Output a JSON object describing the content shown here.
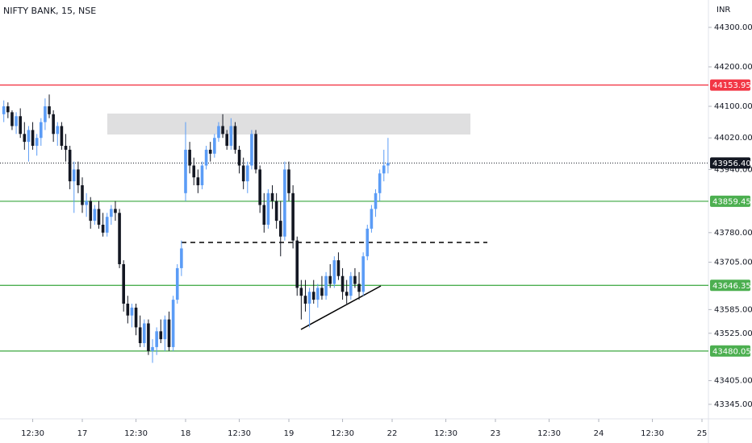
{
  "chart_data": {
    "type": "candlestick",
    "title": "NIFTY BANK, 15, NSE",
    "currency": "INR",
    "x": [
      -19,
      -18,
      -17,
      -16,
      -15,
      -14,
      -13,
      -12,
      -11,
      -10,
      -9,
      -8,
      -7,
      -6,
      -5,
      -4,
      -3,
      -2,
      -1,
      0,
      1,
      2,
      3,
      4,
      5,
      6,
      7,
      8,
      9,
      10,
      11,
      12,
      13,
      14,
      15,
      16,
      17,
      18,
      19,
      20,
      21,
      22,
      23,
      24,
      25,
      26,
      27,
      28,
      29,
      30,
      31,
      32,
      33,
      34,
      35,
      36,
      37,
      38,
      39,
      40,
      41,
      42,
      43,
      44,
      45,
      46,
      47,
      48,
      49,
      50,
      51,
      52,
      53,
      54,
      55,
      56,
      57,
      58,
      59,
      60,
      61,
      62,
      63,
      64,
      65,
      66,
      67,
      68,
      69,
      70,
      71,
      72,
      73,
      74
    ],
    "series": [
      {
        "up_color": "#5b9cf6",
        "down_color": "#131722",
        "open": [
          44080,
          44100,
          44085,
          44050,
          44075,
          44030,
          44010,
          44040,
          44000,
          44020,
          44060,
          44100,
          44080,
          44030,
          44050,
          44000,
          43990,
          43910,
          43940,
          43900,
          43850,
          43860,
          43810,
          43840,
          43800,
          43780,
          43820,
          43840,
          43830,
          43700,
          43600,
          43570,
          43590,
          43540,
          43500,
          43550,
          43480,
          43490,
          43530,
          43510,
          43560,
          43490,
          43610,
          43690,
          43880,
          43990,
          43950,
          43920,
          43900,
          43950,
          43990,
          43980,
          44020,
          44050,
          44030,
          44000,
          44050,
          43990,
          43950,
          43910,
          43950,
          44030,
          43940,
          43850,
          43800,
          43880,
          43860,
          43810,
          43770,
          43940,
          43880,
          43760,
          43640,
          43620,
          43600,
          43630,
          43610,
          43640,
          43620,
          43670,
          43650,
          43710,
          43670,
          43630,
          43620,
          43670,
          43650,
          43630,
          43720,
          43790,
          43840,
          43880,
          43930,
          43950
        ],
        "high": [
          44115,
          44110,
          44090,
          44085,
          44095,
          44060,
          44050,
          44060,
          44030,
          44070,
          44120,
          44130,
          44090,
          44060,
          44060,
          44030,
          44000,
          43960,
          43960,
          43920,
          43880,
          43870,
          43850,
          43860,
          43830,
          43830,
          43850,
          43860,
          43840,
          43710,
          43620,
          43600,
          43600,
          43570,
          43560,
          43560,
          43510,
          43540,
          43560,
          43570,
          43580,
          43620,
          43700,
          43760,
          44060,
          44010,
          43970,
          43940,
          43960,
          44000,
          44010,
          44030,
          44060,
          44080,
          44040,
          44070,
          44060,
          44000,
          43970,
          43960,
          44040,
          44040,
          43950,
          43880,
          43890,
          43900,
          43880,
          43860,
          43960,
          43960,
          43900,
          43770,
          43660,
          43660,
          43640,
          43660,
          43650,
          43670,
          43680,
          43700,
          43720,
          43730,
          43690,
          43660,
          43680,
          43690,
          43680,
          43730,
          43800,
          43850,
          43890,
          43940,
          43990,
          44020
        ],
        "low": [
          44060,
          44070,
          44040,
          44030,
          44020,
          43990,
          43960,
          43990,
          43975,
          44000,
          44040,
          44070,
          44010,
          44000,
          43990,
          43960,
          43890,
          43830,
          43880,
          43830,
          43820,
          43790,
          43800,
          43790,
          43770,
          43770,
          43800,
          43810,
          43690,
          43580,
          43550,
          43540,
          43520,
          43490,
          43490,
          43470,
          43450,
          43470,
          43500,
          43480,
          43480,
          43480,
          43600,
          43670,
          43860,
          43930,
          43900,
          43880,
          43890,
          43940,
          43960,
          43970,
          44010,
          44020,
          43990,
          43990,
          43980,
          43930,
          43890,
          43880,
          43940,
          43930,
          43830,
          43780,
          43790,
          43840,
          43790,
          43720,
          43760,
          43860,
          43740,
          43620,
          43560,
          43580,
          43540,
          43600,
          43590,
          43610,
          43610,
          43640,
          43640,
          43660,
          43610,
          43600,
          43610,
          43640,
          43610,
          43620,
          43710,
          43780,
          43820,
          43860,
          43910,
          43930
        ],
        "close": [
          44100,
          44085,
          44050,
          44075,
          44030,
          44010,
          44040,
          44000,
          44020,
          44060,
          44100,
          44080,
          44030,
          44050,
          44000,
          43990,
          43910,
          43940,
          43900,
          43850,
          43860,
          43810,
          43840,
          43800,
          43780,
          43820,
          43840,
          43830,
          43700,
          43600,
          43570,
          43590,
          43540,
          43500,
          43550,
          43480,
          43490,
          43530,
          43510,
          43560,
          43490,
          43610,
          43690,
          43740,
          43990,
          43950,
          43920,
          43900,
          43950,
          43990,
          43980,
          44020,
          44050,
          44030,
          44000,
          44050,
          43990,
          43950,
          43910,
          43950,
          44030,
          43940,
          43850,
          43800,
          43880,
          43860,
          43810,
          43770,
          43940,
          43880,
          43760,
          43640,
          43620,
          43600,
          43630,
          43610,
          43640,
          43620,
          43670,
          43650,
          43710,
          43670,
          43630,
          43620,
          43670,
          43650,
          43630,
          43720,
          43790,
          43840,
          43880,
          43930,
          43950,
          43956.4
        ]
      }
    ],
    "xlim": [
      -19.92,
      151.56
    ],
    "xticks": [
      {
        "value": -12,
        "label": "12:30"
      },
      {
        "value": 0,
        "label": "17"
      },
      {
        "value": 13,
        "label": "12:30"
      },
      {
        "value": 25,
        "label": "18"
      },
      {
        "value": 38,
        "label": "12:30"
      },
      {
        "value": 50,
        "label": "19"
      },
      {
        "value": 63,
        "label": "12:30"
      },
      {
        "value": 75,
        "label": "22"
      },
      {
        "value": 88,
        "label": "12:30"
      },
      {
        "value": 100,
        "label": "23"
      },
      {
        "value": 113,
        "label": "12:30"
      },
      {
        "value": 125,
        "label": "24"
      },
      {
        "value": 138,
        "label": "12:30"
      },
      {
        "value": 150,
        "label": "25"
      }
    ],
    "ylim": [
      43308.2,
      44369.4
    ],
    "yticks": [
      {
        "value": 44300,
        "label": "44300.00"
      },
      {
        "value": 44200,
        "label": "44200.00"
      },
      {
        "value": 44100,
        "label": "44100.00"
      },
      {
        "value": 44020,
        "label": "44020.00"
      },
      {
        "value": 43940,
        "label": "43940.00"
      },
      {
        "value": 43780,
        "label": "43780.00"
      },
      {
        "value": 43705,
        "label": "43705.00"
      },
      {
        "value": 43585,
        "label": "43585.00"
      },
      {
        "value": 43525,
        "label": "43525.00"
      },
      {
        "value": 43405,
        "label": "43405.00"
      },
      {
        "value": 43345,
        "label": "43345.00"
      }
    ],
    "levels": [
      {
        "value": 44153.95,
        "label": "44153.95",
        "color": "#f23645"
      },
      {
        "value": 43859.45,
        "label": "43859.45",
        "color": "#4caf50"
      },
      {
        "value": 43646.35,
        "label": "43646.35",
        "color": "#4caf50"
      },
      {
        "value": 43480.05,
        "label": "43480.05",
        "color": "#4caf50"
      }
    ],
    "last_price": {
      "value": 43956.4,
      "label": "43956.40",
      "color": "#131722"
    }
  }
}
